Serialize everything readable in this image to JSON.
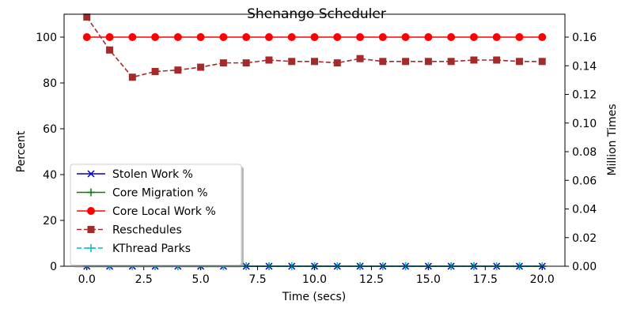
{
  "chart_data": {
    "type": "line",
    "title": "Shenango Scheduler",
    "xlabel": "Time (secs)",
    "ylabel": "Percent",
    "y2label": "Million Times",
    "xlim": [
      -1,
      21
    ],
    "ylim": [
      0,
      110
    ],
    "y2lim": [
      0,
      0.176
    ],
    "xticks": [
      "0.0",
      "2.5",
      "5.0",
      "7.5",
      "10.0",
      "12.5",
      "15.0",
      "17.5",
      "20.0"
    ],
    "yticks": [
      "0",
      "20",
      "40",
      "60",
      "80",
      "100"
    ],
    "y2ticks": [
      "0.00",
      "0.02",
      "0.04",
      "0.06",
      "0.08",
      "0.10",
      "0.12",
      "0.14",
      "0.16"
    ],
    "grid": false,
    "legend": "lower-left",
    "x": [
      0,
      1,
      2,
      3,
      4,
      5,
      6,
      7,
      8,
      9,
      10,
      11,
      12,
      13,
      14,
      15,
      16,
      17,
      18,
      19,
      20
    ],
    "series": [
      {
        "name": "Stolen Work %",
        "axis": "left",
        "color": "#0000cc",
        "marker": "x",
        "linestyle": "solid",
        "values": [
          0,
          0,
          0,
          0,
          0,
          0,
          0,
          0,
          0,
          0,
          0,
          0,
          0,
          0,
          0,
          0,
          0,
          0,
          0,
          0,
          0
        ]
      },
      {
        "name": "Core Migration %",
        "axis": "left",
        "color": "#008000",
        "marker": "plus",
        "linestyle": "solid",
        "values": [
          0,
          0,
          0,
          0,
          0,
          0,
          0,
          0,
          0,
          0,
          0,
          0,
          0,
          0,
          0,
          0,
          0,
          0,
          0,
          0,
          0
        ]
      },
      {
        "name": "Core Local Work %",
        "axis": "left",
        "color": "#ff0000",
        "marker": "circle",
        "linestyle": "solid",
        "values": [
          100,
          100,
          100,
          100,
          100,
          100,
          100,
          100,
          100,
          100,
          100,
          100,
          100,
          100,
          100,
          100,
          100,
          100,
          100,
          100,
          100
        ]
      },
      {
        "name": "Reschedules",
        "axis": "right",
        "color": "#a52a2a",
        "marker": "square",
        "linestyle": "dashed",
        "values": [
          0.174,
          0.151,
          0.132,
          0.136,
          0.137,
          0.139,
          0.142,
          0.142,
          0.144,
          0.143,
          0.143,
          0.142,
          0.145,
          0.143,
          0.143,
          0.143,
          0.143,
          0.144,
          0.144,
          0.143,
          0.143
        ]
      },
      {
        "name": "KThread Parks",
        "axis": "right",
        "color": "#00bfbf",
        "marker": "plus",
        "linestyle": "dashed",
        "values": [
          0,
          0,
          0,
          0,
          0,
          0,
          0,
          0,
          0,
          0,
          0,
          0,
          0,
          0,
          0,
          0,
          0,
          0,
          0,
          0,
          0
        ]
      }
    ]
  }
}
